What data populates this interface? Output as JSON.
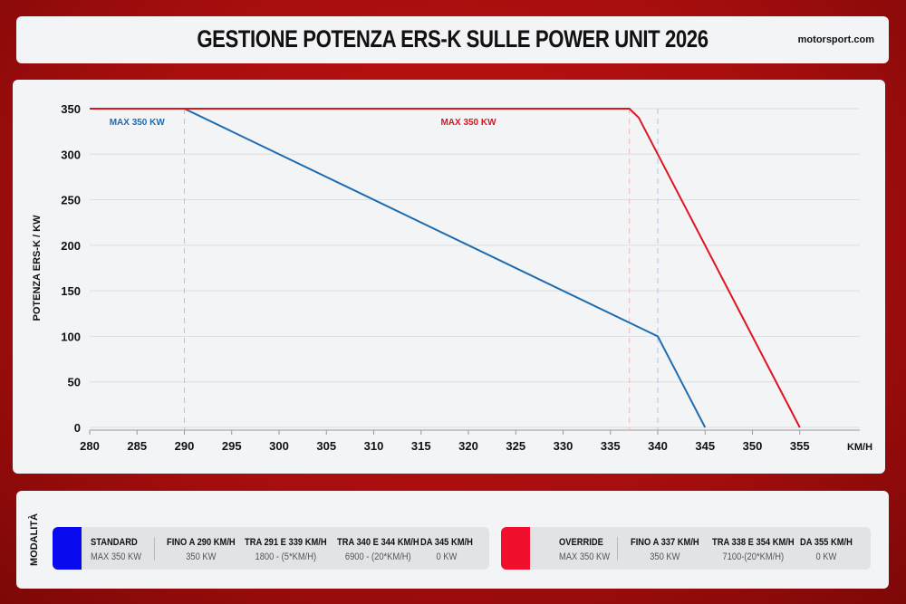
{
  "header": {
    "title": "GESTIONE POTENZA ERS-K SULLE POWER UNIT 2026",
    "brand": "motorsport.com"
  },
  "chart_data": {
    "type": "line",
    "title": "GESTIONE POTENZA ERS-K SULLE POWER UNIT 2026",
    "xlabel": "KM/H",
    "ylabel": "POTENZA ERS-K / KW",
    "xlim": [
      280,
      361
    ],
    "ylim": [
      0,
      350
    ],
    "xticks": [
      280,
      285,
      290,
      295,
      300,
      305,
      310,
      315,
      320,
      325,
      330,
      335,
      340,
      345,
      350,
      355
    ],
    "yticks": [
      0,
      50,
      100,
      150,
      200,
      250,
      300,
      350
    ],
    "grid": true,
    "series": [
      {
        "name": "STANDARD",
        "color": "#1f6cb0",
        "x": [
          280,
          290,
          339,
          340,
          345
        ],
        "y": [
          350,
          350,
          105,
          100,
          0
        ]
      },
      {
        "name": "OVERRIDE",
        "color": "#e0141e",
        "x": [
          280,
          337,
          338,
          354,
          355
        ],
        "y": [
          350,
          350,
          340,
          20,
          0
        ]
      }
    ],
    "annotations": [
      {
        "text": "MAX 350 KW",
        "color": "#1f6cb0",
        "x": 285
      },
      {
        "text": "MAX 350 KW",
        "color": "#e0141e",
        "x": 320
      }
    ],
    "vlines": [
      {
        "x": 290,
        "color": "#a9c8e8"
      },
      {
        "x": 337,
        "color": "#f0b8c0"
      },
      {
        "x": 340,
        "color": "#a9c8e8"
      }
    ]
  },
  "legend": {
    "label": "MODALITÀ",
    "standard": {
      "color": "#0a0aee",
      "cols": [
        {
          "h": "STANDARD",
          "v": "MAX 350 KW"
        },
        {
          "h": "FINO A 290 KM/H",
          "v": "350 KW"
        },
        {
          "h": "TRA 291 E 339 KM/H",
          "v": "1800 - (5*KM/H)"
        },
        {
          "h": "TRA 340 E 344 KM/H",
          "v": "6900 - (20*KM/H)"
        },
        {
          "h": "DA 345 KM/H",
          "v": "0 KW"
        }
      ]
    },
    "override": {
      "color": "#f0102e",
      "cols": [
        {
          "h": "OVERRIDE",
          "v": "MAX 350 KW"
        },
        {
          "h": "FINO A 337 KM/H",
          "v": "350 KW"
        },
        {
          "h": "TRA 338 E 354 KM/H",
          "v": "7100-(20*KM/H)"
        },
        {
          "h": "DA 355 KM/H",
          "v": "0 KW"
        }
      ]
    }
  }
}
